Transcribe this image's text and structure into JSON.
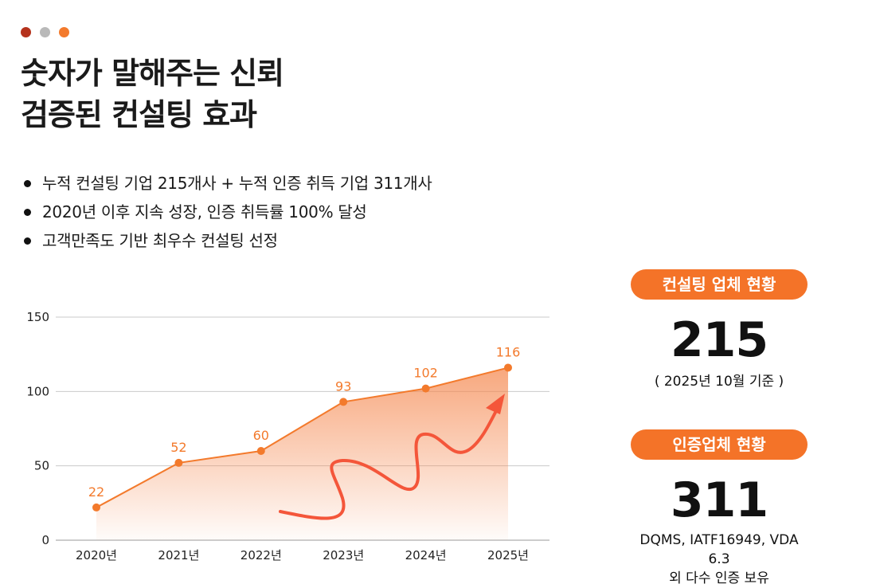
{
  "colors": {
    "accent": "#f37a2c",
    "pill": "#f47328",
    "dot1": "#b5321c",
    "dot2": "#b9b9b9",
    "dot3": "#f37a2c",
    "grid": "#c9c9c9",
    "arrow": "#f4563a"
  },
  "header": {
    "title_line1": "숫자가 말해주는 신뢰",
    "title_line2": "검증된 컨설팅 효과"
  },
  "bullets": [
    "누적 컨설팅 기업 215개사 + 누적 인증 취득 기업 311개사",
    "2020년 이후 지속 성장, 인증 취득률 100% 달성",
    "고객만족도 기반 최우수 컨설팅 선정"
  ],
  "chart_data": {
    "type": "area",
    "categories": [
      "2020년",
      "2021년",
      "2022년",
      "2023년",
      "2024년",
      "2025년"
    ],
    "values": [
      22,
      52,
      60,
      93,
      102,
      116
    ],
    "data_labels": [
      "22",
      "52",
      "60",
      "93",
      "102",
      "116"
    ],
    "yticks": [
      "0",
      "50",
      "100",
      "150"
    ],
    "ylim": [
      0,
      150
    ],
    "title": "",
    "xlabel": "",
    "ylabel": "",
    "grid": true
  },
  "stats": [
    {
      "label": "컨설팅 업체 현황",
      "value": "215",
      "note1": "( 2025년 10월 기준 )",
      "note2": ""
    },
    {
      "label": "인증업체 현황",
      "value": "311",
      "note1": "DQMS, IATF16949, VDA 6.3",
      "note2": "외 다수 인증 보유"
    }
  ]
}
